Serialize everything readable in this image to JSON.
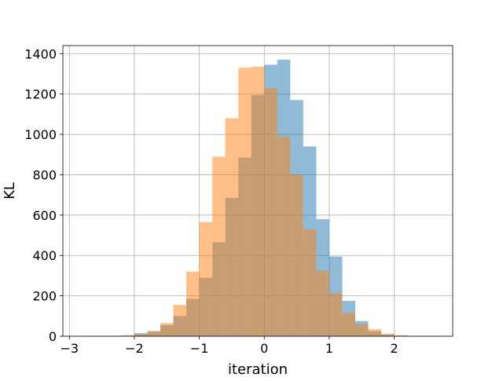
{
  "chart_data": {
    "type": "bar",
    "title": "",
    "xlabel": "iteration",
    "ylabel": "KL",
    "xlim": [
      -3.1,
      2.9
    ],
    "ylim": [
      0,
      1440
    ],
    "grid": true,
    "legend": "none",
    "xticks": [
      -3,
      -2,
      -1,
      0,
      1,
      2
    ],
    "yticks": [
      0,
      200,
      400,
      600,
      800,
      1000,
      1200,
      1400
    ],
    "series": [
      {
        "color": "#1f77b4",
        "opacity": 0.5,
        "bins": [
          {
            "x0": -2.0,
            "x1": -1.8,
            "count": 15
          },
          {
            "x0": -1.8,
            "x1": -1.6,
            "count": 25
          },
          {
            "x0": -1.6,
            "x1": -1.4,
            "count": 55
          },
          {
            "x0": -1.4,
            "x1": -1.2,
            "count": 100
          },
          {
            "x0": -1.2,
            "x1": -1.0,
            "count": 185
          },
          {
            "x0": -1.0,
            "x1": -0.8,
            "count": 290
          },
          {
            "x0": -0.8,
            "x1": -0.6,
            "count": 465
          },
          {
            "x0": -0.6,
            "x1": -0.4,
            "count": 685
          },
          {
            "x0": -0.4,
            "x1": -0.2,
            "count": 885
          },
          {
            "x0": -0.2,
            "x1": 0.0,
            "count": 1195
          },
          {
            "x0": 0.0,
            "x1": 0.2,
            "count": 1345
          },
          {
            "x0": 0.2,
            "x1": 0.4,
            "count": 1370
          },
          {
            "x0": 0.4,
            "x1": 0.6,
            "count": 1170
          },
          {
            "x0": 0.6,
            "x1": 0.8,
            "count": 940
          },
          {
            "x0": 0.8,
            "x1": 1.0,
            "count": 580
          },
          {
            "x0": 1.0,
            "x1": 1.2,
            "count": 395
          },
          {
            "x0": 1.2,
            "x1": 1.4,
            "count": 175
          },
          {
            "x0": 1.4,
            "x1": 1.6,
            "count": 75
          },
          {
            "x0": 1.6,
            "x1": 1.8,
            "count": 25
          },
          {
            "x0": 1.8,
            "x1": 2.0,
            "count": 8
          }
        ]
      },
      {
        "color": "#ff7f0e",
        "opacity": 0.5,
        "bins": [
          {
            "x0": -2.2,
            "x1": -2.0,
            "count": 5
          },
          {
            "x0": -2.0,
            "x1": -1.8,
            "count": 10
          },
          {
            "x0": -1.8,
            "x1": -1.6,
            "count": 25
          },
          {
            "x0": -1.6,
            "x1": -1.4,
            "count": 65
          },
          {
            "x0": -1.4,
            "x1": -1.2,
            "count": 155
          },
          {
            "x0": -1.2,
            "x1": -1.0,
            "count": 320
          },
          {
            "x0": -1.0,
            "x1": -0.8,
            "count": 565
          },
          {
            "x0": -0.8,
            "x1": -0.6,
            "count": 890
          },
          {
            "x0": -0.6,
            "x1": -0.4,
            "count": 1080
          },
          {
            "x0": -0.4,
            "x1": -0.2,
            "count": 1330
          },
          {
            "x0": -0.2,
            "x1": 0.0,
            "count": 1335
          },
          {
            "x0": 0.0,
            "x1": 0.2,
            "count": 1230
          },
          {
            "x0": 0.2,
            "x1": 0.4,
            "count": 990
          },
          {
            "x0": 0.4,
            "x1": 0.6,
            "count": 800
          },
          {
            "x0": 0.6,
            "x1": 0.8,
            "count": 530
          },
          {
            "x0": 0.8,
            "x1": 1.0,
            "count": 325
          },
          {
            "x0": 1.0,
            "x1": 1.2,
            "count": 215
          },
          {
            "x0": 1.2,
            "x1": 1.4,
            "count": 115
          },
          {
            "x0": 1.4,
            "x1": 1.6,
            "count": 60
          },
          {
            "x0": 1.6,
            "x1": 1.8,
            "count": 35
          },
          {
            "x0": 1.8,
            "x1": 2.0,
            "count": 12
          },
          {
            "x0": 2.0,
            "x1": 2.2,
            "count": 5
          }
        ]
      }
    ]
  }
}
